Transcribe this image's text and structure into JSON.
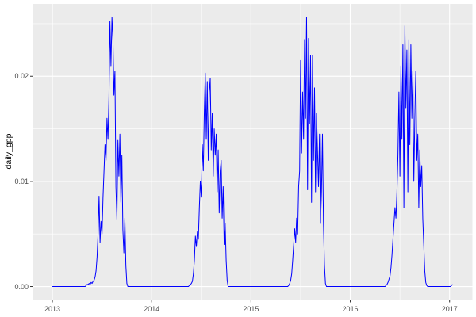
{
  "chart_data": {
    "type": "line",
    "title": "",
    "xlabel": "",
    "ylabel": "daily_gpp",
    "legend": "none",
    "grid": true,
    "panel_bg": "#EBEBEB",
    "grid_major_color": "#FFFFFF",
    "grid_minor_color": "#FFFFFF",
    "line_color": "#0000FF",
    "tick_mark_color": "#333333",
    "tick_label_color": "#4D4D4D",
    "xlim": [
      2012.8,
      2017.23
    ],
    "ylim": [
      -0.00128,
      0.02688
    ],
    "x_ticks": [
      {
        "v": 2013,
        "label": "2013"
      },
      {
        "v": 2014,
        "label": "2014"
      },
      {
        "v": 2015,
        "label": "2015"
      },
      {
        "v": 2016,
        "label": "2016"
      },
      {
        "v": 2017,
        "label": "2017"
      }
    ],
    "y_ticks": [
      {
        "v": 0.0,
        "label": "0.00"
      },
      {
        "v": 0.01,
        "label": "0.01"
      },
      {
        "v": 0.02,
        "label": "0.02"
      }
    ],
    "x_minor": [
      2013.5,
      2014.5,
      2015.5,
      2016.5
    ],
    "y_minor": [
      0.005,
      0.015,
      0.025
    ],
    "series": {
      "x_start": 2013.0,
      "dx": 0.01,
      "values": [
        0,
        0,
        0,
        0,
        0,
        0,
        0,
        0,
        0,
        0,
        0,
        0,
        0,
        0,
        0,
        0,
        0,
        0,
        0,
        0,
        0,
        0,
        0,
        0,
        0,
        0,
        0,
        0,
        0,
        0,
        0,
        0,
        0,
        0,
        0.0001,
        0.0002,
        0.0002,
        0.0003,
        0.0002,
        0.0004,
        0.0003,
        0.0005,
        0.0006,
        0.0009,
        0.0015,
        0.0028,
        0.005,
        0.0086,
        0.0042,
        0.0062,
        0.005,
        0.0085,
        0.011,
        0.0135,
        0.012,
        0.016,
        0.014,
        0.018,
        0.0252,
        0.021,
        0.0256,
        0.0235,
        0.0182,
        0.0205,
        0.0095,
        0.0064,
        0.0139,
        0.0105,
        0.0145,
        0.008,
        0.0125,
        0.0054,
        0.0032,
        0.0065,
        0.002,
        0.0003,
        0,
        0,
        0,
        0,
        0,
        0,
        0,
        0,
        0,
        0,
        0,
        0,
        0,
        0,
        0,
        0,
        0,
        0,
        0,
        0,
        0,
        0,
        0,
        0,
        0,
        0,
        0,
        0,
        0,
        0,
        0,
        0,
        0,
        0,
        0,
        0,
        0,
        0,
        0,
        0,
        0,
        0,
        0,
        0,
        0,
        0,
        0,
        0,
        0,
        0,
        0,
        0,
        0,
        0,
        0,
        0,
        0,
        0,
        0,
        0,
        0,
        0,
        0.0001,
        0.0002,
        0.0003,
        0.0005,
        0.0012,
        0.0025,
        0.0048,
        0.0038,
        0.0052,
        0.0045,
        0.0075,
        0.01,
        0.0085,
        0.0135,
        0.011,
        0.0165,
        0.0203,
        0.014,
        0.0195,
        0.012,
        0.0185,
        0.0198,
        0.013,
        0.0165,
        0.0105,
        0.015,
        0.0125,
        0.0145,
        0.009,
        0.013,
        0.007,
        0.011,
        0.012,
        0.0065,
        0.0095,
        0.004,
        0.006,
        0.0025,
        0.0006,
        0,
        0,
        0,
        0,
        0,
        0,
        0,
        0,
        0,
        0,
        0,
        0,
        0,
        0,
        0,
        0,
        0,
        0,
        0,
        0,
        0,
        0,
        0,
        0,
        0,
        0,
        0,
        0,
        0,
        0,
        0,
        0,
        0,
        0,
        0,
        0,
        0,
        0,
        0,
        0,
        0,
        0,
        0,
        0,
        0,
        0,
        0,
        0,
        0,
        0,
        0,
        0,
        0,
        0,
        0,
        0,
        0,
        0,
        0,
        0,
        0,
        0.0001,
        0.0003,
        0.0006,
        0.0012,
        0.0025,
        0.004,
        0.0055,
        0.0042,
        0.0065,
        0.005,
        0.0095,
        0.011,
        0.0215,
        0.0127,
        0.0185,
        0.014,
        0.0235,
        0.016,
        0.0256,
        0.0092,
        0.0236,
        0.0155,
        0.022,
        0.008,
        0.022,
        0.012,
        0.0189,
        0.009,
        0.0165,
        0.013,
        0.0095,
        0.0145,
        0.006,
        0.009,
        0.0145,
        0.006,
        0.002,
        0.0003,
        0,
        0,
        0,
        0,
        0,
        0,
        0,
        0,
        0,
        0,
        0,
        0,
        0,
        0,
        0,
        0,
        0,
        0,
        0,
        0,
        0,
        0,
        0,
        0,
        0,
        0,
        0,
        0,
        0,
        0,
        0,
        0,
        0,
        0,
        0,
        0,
        0,
        0,
        0,
        0,
        0,
        0,
        0,
        0,
        0,
        0,
        0,
        0,
        0,
        0,
        0,
        0,
        0,
        0,
        0,
        0,
        0,
        0,
        0,
        0,
        0.0001,
        0.0002,
        0.0004,
        0.0007,
        0.001,
        0.0018,
        0.003,
        0.0045,
        0.006,
        0.0075,
        0.0065,
        0.009,
        0.0125,
        0.0185,
        0.0105,
        0.021,
        0.014,
        0.023,
        0.0075,
        0.0248,
        0.017,
        0.0225,
        0.009,
        0.0235,
        0.0135,
        0.023,
        0.016,
        0.0205,
        0.01,
        0.016,
        0.0205,
        0.012,
        0.0145,
        0.0075,
        0.013,
        0.0095,
        0.0115,
        0.0065,
        0.004,
        0.0015,
        0.0004,
        0.0001,
        0,
        0,
        0,
        0,
        0,
        0,
        0,
        0,
        0,
        0,
        0,
        0,
        0,
        0,
        0,
        0,
        0,
        0,
        0,
        0,
        0,
        0,
        0,
        0,
        0.0001,
        0.0002
      ]
    }
  }
}
